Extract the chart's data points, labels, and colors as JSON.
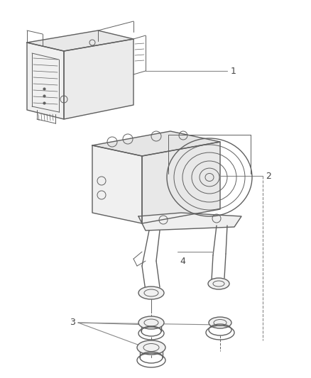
{
  "background_color": "#ffffff",
  "line_color": "#606060",
  "label_color": "#444444",
  "figsize": [
    4.38,
    5.33
  ],
  "dpi": 100,
  "parts": {
    "part1_label": "1",
    "part2_label": "2",
    "part3_label": "3",
    "part4_label": "4"
  }
}
